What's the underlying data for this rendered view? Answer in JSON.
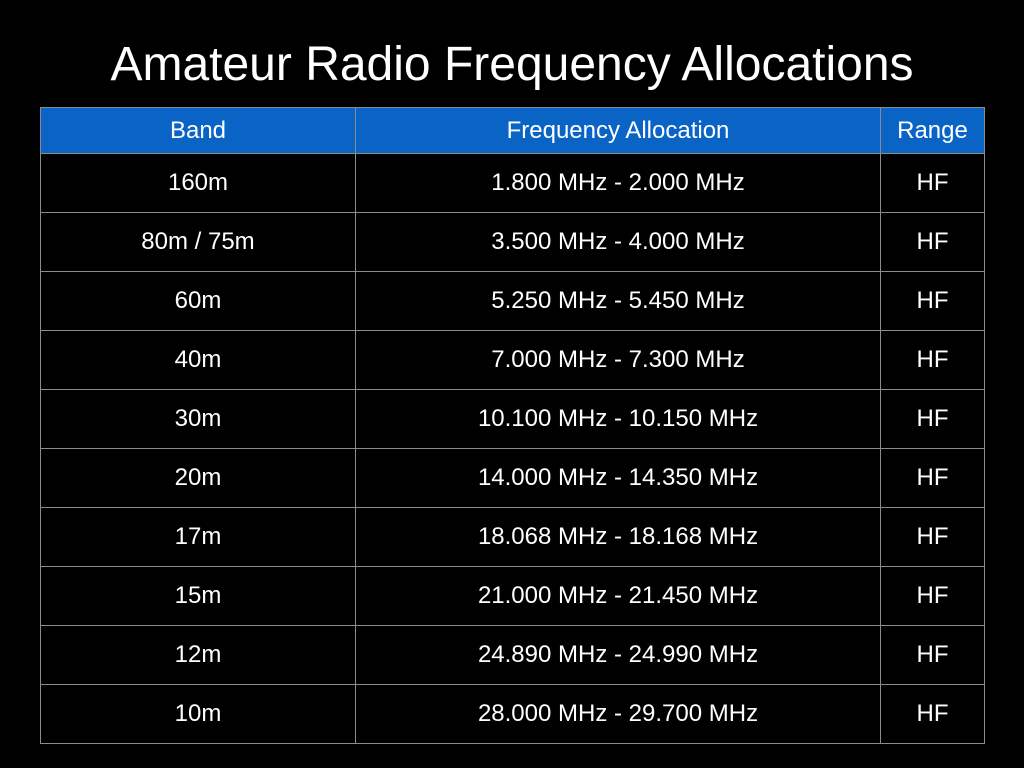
{
  "title": "Amateur Radio Frequency Allocations",
  "colors": {
    "background": "#000000",
    "header_fill": "#0a64c6",
    "text": "#ffffff",
    "grid": "#8c8c8c"
  },
  "table": {
    "headers": [
      "Band",
      "Frequency Allocation",
      "Range"
    ],
    "rows": [
      [
        "160m",
        "1.800 MHz - 2.000 MHz",
        "HF"
      ],
      [
        "80m / 75m",
        "3.500 MHz - 4.000 MHz",
        "HF"
      ],
      [
        "60m",
        "5.250 MHz - 5.450 MHz",
        "HF"
      ],
      [
        "40m",
        "7.000 MHz - 7.300 MHz",
        "HF"
      ],
      [
        "30m",
        "10.100 MHz - 10.150 MHz",
        "HF"
      ],
      [
        "20m",
        "14.000 MHz - 14.350 MHz",
        "HF"
      ],
      [
        "17m",
        "18.068 MHz - 18.168 MHz",
        "HF"
      ],
      [
        "15m",
        "21.000 MHz - 21.450 MHz",
        "HF"
      ],
      [
        "12m",
        "24.890 MHz - 24.990 MHz",
        "HF"
      ],
      [
        "10m",
        "28.000 MHz - 29.700 MHz",
        "HF"
      ]
    ]
  }
}
